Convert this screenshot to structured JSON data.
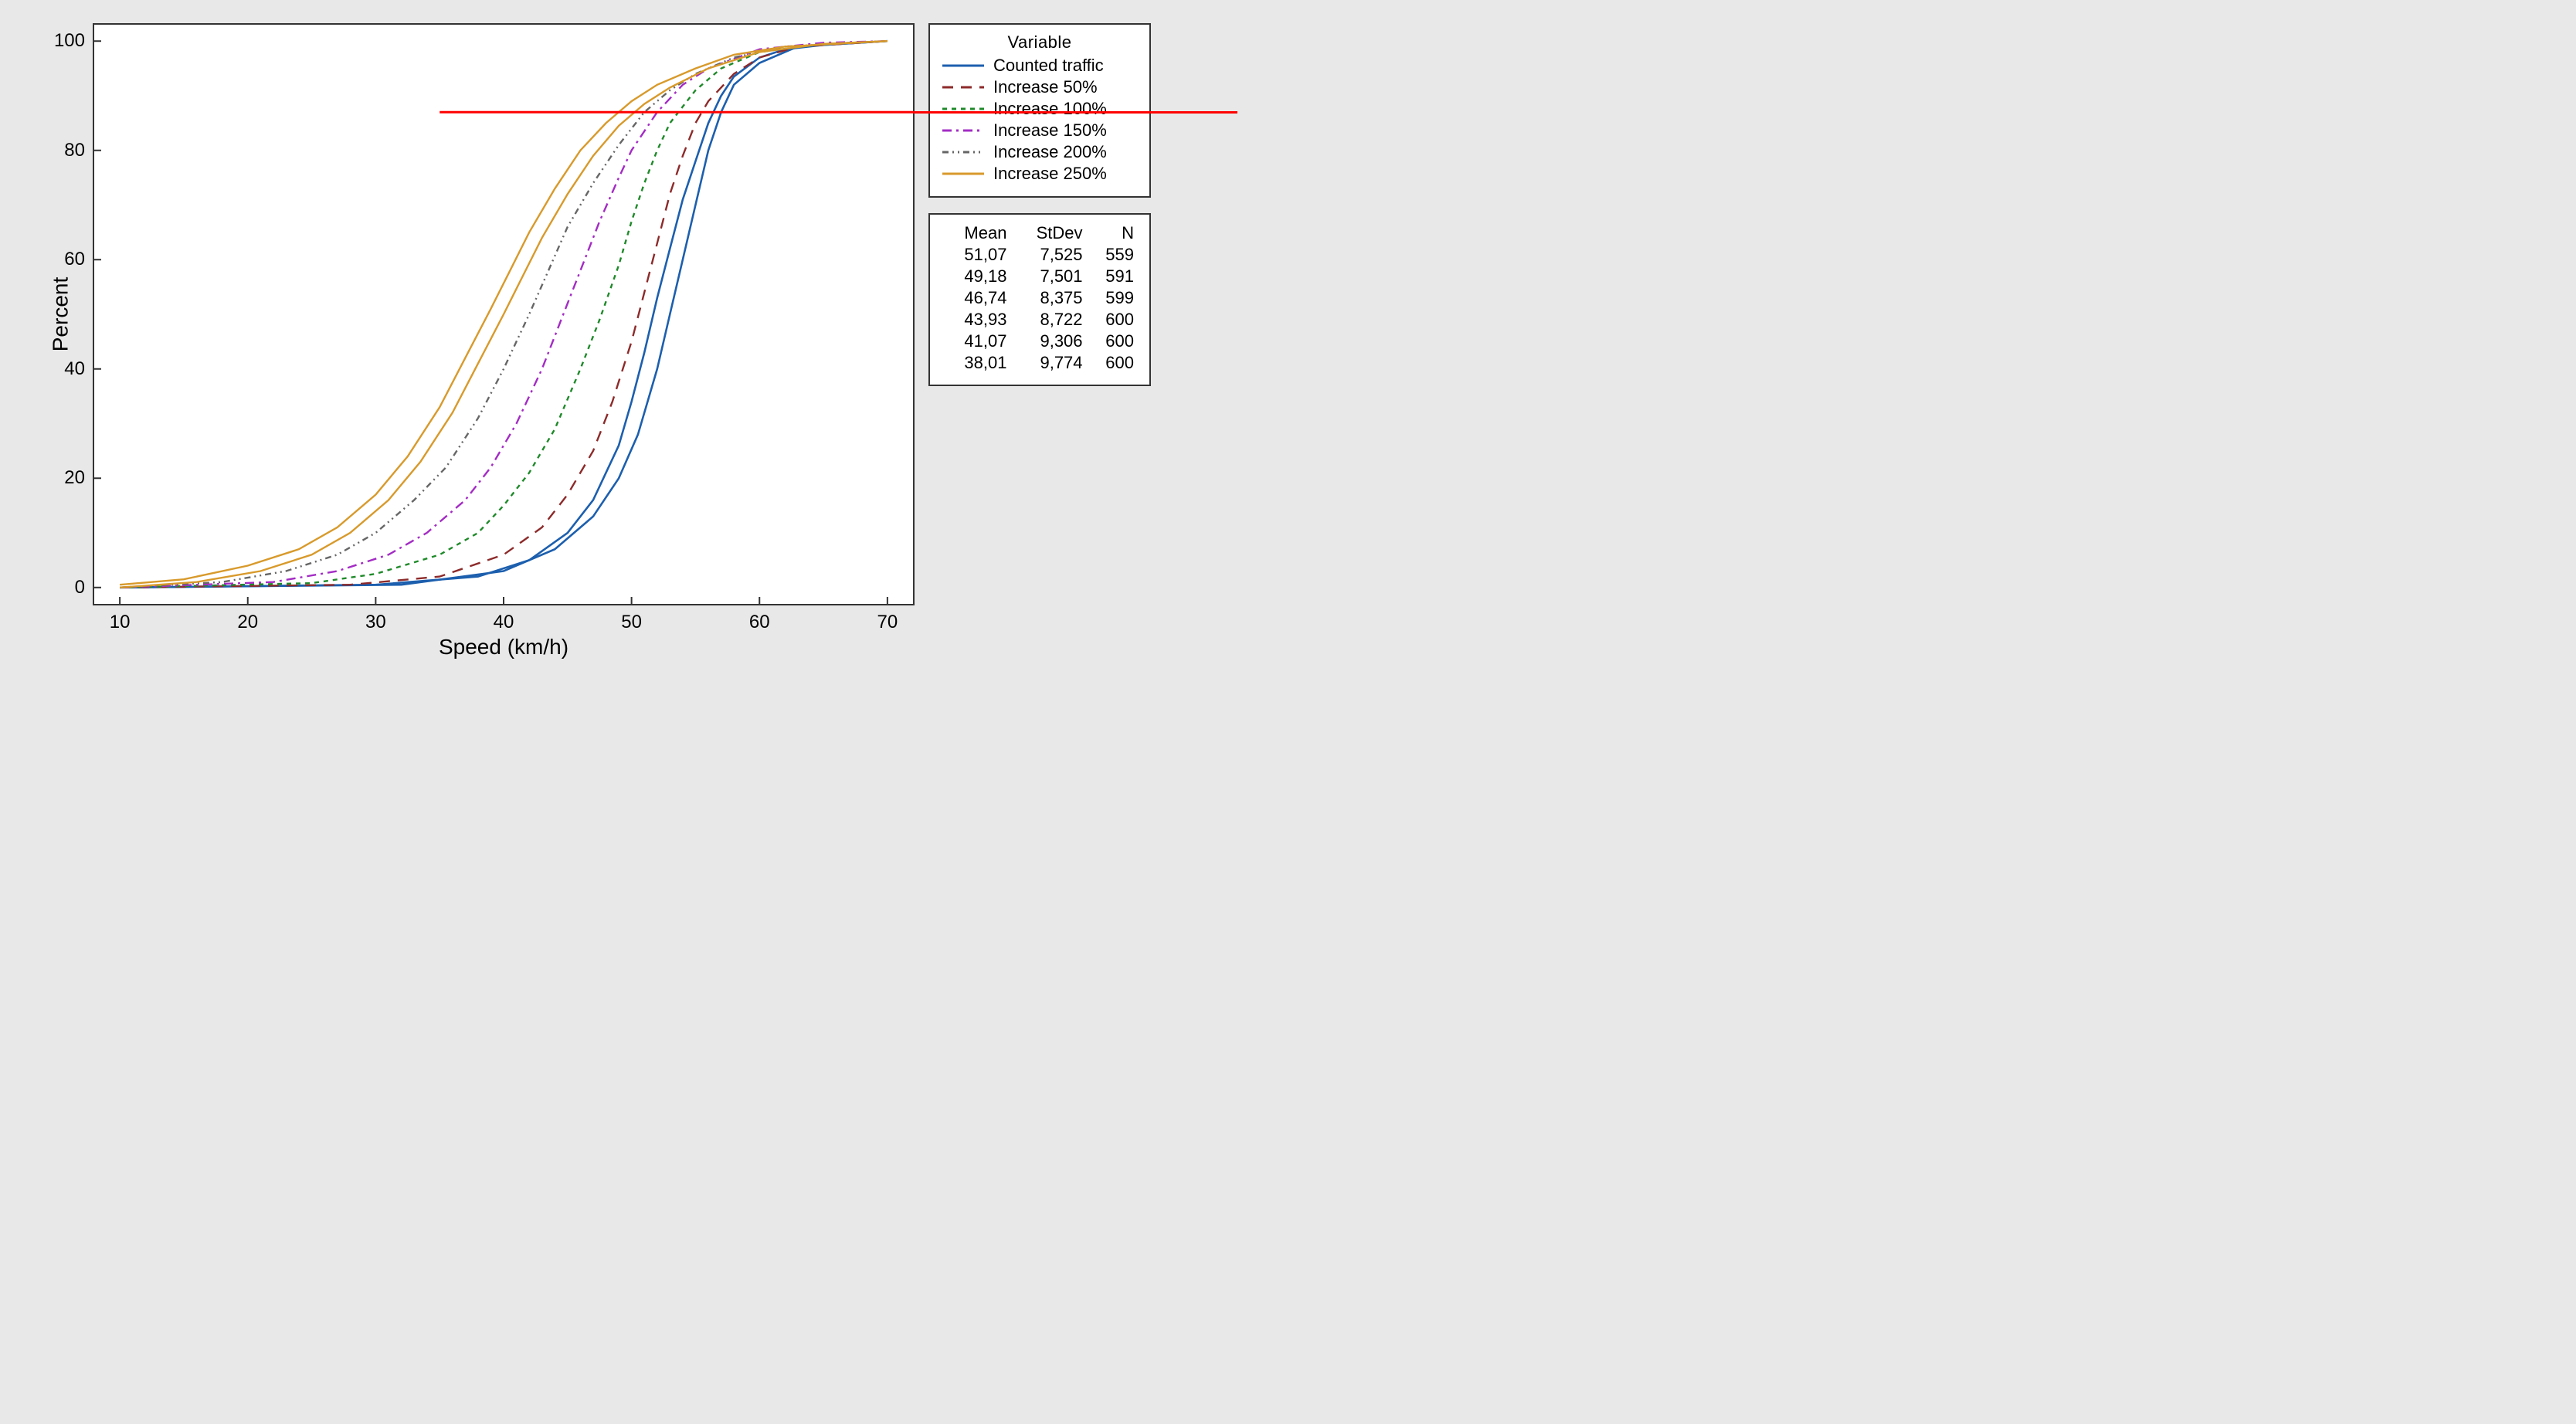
{
  "chart": {
    "type": "line-cdf",
    "background_color": "#e8e8e8",
    "plot_bg": "#ffffff",
    "border_color": "#333333",
    "x_label": "Speed (km/h)",
    "y_label": "Percent",
    "label_fontsize": 28,
    "tick_fontsize": 24,
    "xlim": [
      8,
      72
    ],
    "ylim": [
      -3,
      103
    ],
    "x_ticks": [
      10,
      20,
      30,
      40,
      50,
      60,
      70
    ],
    "y_ticks": [
      0,
      20,
      40,
      60,
      80,
      100
    ],
    "reference_line": {
      "y": 87,
      "color": "#ff0000",
      "width": 3,
      "x_start": 35,
      "extend_right": true
    },
    "series": [
      {
        "name": "Counted traffic",
        "color": "#1c5fae",
        "width": 2.6,
        "dash": "",
        "legend_sample": "solid",
        "mean": 51.07,
        "stdev": 7.525,
        "n": 559,
        "curves": [
          [
            [
              10,
              0
            ],
            [
              30,
              0.5
            ],
            [
              38,
              2
            ],
            [
              42,
              5
            ],
            [
              45,
              10
            ],
            [
              47,
              16
            ],
            [
              49,
              26
            ],
            [
              50,
              34
            ],
            [
              51,
              43
            ],
            [
              52,
              53
            ],
            [
              53,
              62
            ],
            [
              54,
              71
            ],
            [
              55,
              78
            ],
            [
              56,
              85
            ],
            [
              57,
              90
            ],
            [
              58,
              93.5
            ],
            [
              60,
              97
            ],
            [
              62,
              98.5
            ],
            [
              65,
              99.3
            ],
            [
              70,
              100
            ]
          ],
          [
            [
              10,
              0
            ],
            [
              32,
              0.5
            ],
            [
              40,
              3
            ],
            [
              44,
              7
            ],
            [
              47,
              13
            ],
            [
              49,
              20
            ],
            [
              50.5,
              28
            ],
            [
              52,
              40
            ],
            [
              53,
              50
            ],
            [
              54,
              60
            ],
            [
              55,
              70
            ],
            [
              56,
              80
            ],
            [
              57,
              87
            ],
            [
              58,
              92
            ],
            [
              60,
              96
            ],
            [
              63,
              99
            ],
            [
              70,
              100
            ]
          ]
        ]
      },
      {
        "name": "Increase 50%",
        "color": "#8d2a2a",
        "width": 2.4,
        "dash": "14,10",
        "legend_sample": "longdash",
        "mean": 49.18,
        "stdev": 7.501,
        "n": 591,
        "curves": [
          [
            [
              10,
              0
            ],
            [
              28,
              0.5
            ],
            [
              35,
              2
            ],
            [
              40,
              6
            ],
            [
              43,
              11
            ],
            [
              45,
              17
            ],
            [
              47,
              25
            ],
            [
              48.5,
              34
            ],
            [
              50,
              45
            ],
            [
              51,
              54
            ],
            [
              52,
              63
            ],
            [
              53,
              72
            ],
            [
              54,
              79
            ],
            [
              55,
              85
            ],
            [
              56,
              89
            ],
            [
              58,
              94
            ],
            [
              60,
              97
            ],
            [
              63,
              99
            ],
            [
              70,
              100
            ]
          ]
        ]
      },
      {
        "name": "Increase 100%",
        "color": "#1f8a2a",
        "width": 2.4,
        "dash": "6,6",
        "legend_sample": "shortdash",
        "mean": 46.74,
        "stdev": 8.375,
        "n": 599,
        "curves": [
          [
            [
              10,
              0
            ],
            [
              25,
              0.8
            ],
            [
              30,
              2.5
            ],
            [
              35,
              6
            ],
            [
              38,
              10
            ],
            [
              40,
              15
            ],
            [
              42,
              21
            ],
            [
              44,
              29
            ],
            [
              46,
              40
            ],
            [
              47.5,
              49
            ],
            [
              49,
              59
            ],
            [
              50,
              67
            ],
            [
              51,
              74
            ],
            [
              52,
              80
            ],
            [
              53,
              85
            ],
            [
              55,
              91
            ],
            [
              57,
              95
            ],
            [
              60,
              98
            ],
            [
              65,
              99.5
            ],
            [
              70,
              100
            ]
          ]
        ]
      },
      {
        "name": "Increase 150%",
        "color": "#a32cc4",
        "width": 2.4,
        "dash": "12,6,3,6",
        "legend_sample": "dashdot",
        "mean": 43.93,
        "stdev": 8.722,
        "n": 600,
        "curves": [
          [
            [
              10,
              0
            ],
            [
              22,
              1
            ],
            [
              27,
              3
            ],
            [
              31,
              6
            ],
            [
              34,
              10
            ],
            [
              37,
              16
            ],
            [
              39,
              22
            ],
            [
              41,
              30
            ],
            [
              43,
              40
            ],
            [
              44.5,
              49
            ],
            [
              46,
              58
            ],
            [
              47.5,
              67
            ],
            [
              49,
              75
            ],
            [
              50,
              80
            ],
            [
              52,
              87
            ],
            [
              54,
              92
            ],
            [
              56,
              95
            ],
            [
              60,
              98.5
            ],
            [
              65,
              99.7
            ],
            [
              70,
              100
            ]
          ]
        ]
      },
      {
        "name": "Increase 200%",
        "color": "#666666",
        "width": 2.4,
        "dash": "8,5,2,5,2,5",
        "legend_sample": "dashdotdot",
        "mean": 41.07,
        "stdev": 9.306,
        "n": 600,
        "curves": [
          [
            [
              10,
              0
            ],
            [
              18,
              1
            ],
            [
              23,
              3
            ],
            [
              27,
              6
            ],
            [
              30,
              10
            ],
            [
              33,
              16
            ],
            [
              35.5,
              22
            ],
            [
              38,
              31
            ],
            [
              40,
              40
            ],
            [
              42,
              50
            ],
            [
              43.5,
              58
            ],
            [
              45,
              66
            ],
            [
              47,
              74
            ],
            [
              49,
              81
            ],
            [
              51,
              87
            ],
            [
              53,
              91
            ],
            [
              55,
              94
            ],
            [
              58,
              97
            ],
            [
              62,
              99
            ],
            [
              70,
              100
            ]
          ]
        ]
      },
      {
        "name": "Increase 250%",
        "color": "#d89a2b",
        "width": 2.4,
        "dash": "",
        "legend_sample": "solid",
        "mean": 38.01,
        "stdev": 9.774,
        "n": 600,
        "curves": [
          [
            [
              10,
              0.5
            ],
            [
              15,
              1.5
            ],
            [
              20,
              4
            ],
            [
              24,
              7
            ],
            [
              27,
              11
            ],
            [
              30,
              17
            ],
            [
              32.5,
              24
            ],
            [
              35,
              33
            ],
            [
              37,
              42
            ],
            [
              39,
              51
            ],
            [
              40.5,
              58
            ],
            [
              42,
              65
            ],
            [
              44,
              73
            ],
            [
              46,
              80
            ],
            [
              48,
              85
            ],
            [
              50,
              89
            ],
            [
              52,
              92
            ],
            [
              55,
              95
            ],
            [
              58,
              97.5
            ],
            [
              62,
              99
            ],
            [
              70,
              100
            ]
          ],
          [
            [
              10,
              0
            ],
            [
              16,
              1
            ],
            [
              21,
              3
            ],
            [
              25,
              6
            ],
            [
              28,
              10
            ],
            [
              31,
              16
            ],
            [
              33.5,
              23
            ],
            [
              36,
              32
            ],
            [
              38,
              41
            ],
            [
              40,
              50
            ],
            [
              41.5,
              57
            ],
            [
              43,
              64
            ],
            [
              45,
              72
            ],
            [
              47,
              79
            ],
            [
              49,
              84.5
            ],
            [
              51,
              88.5
            ],
            [
              53,
              91.5
            ],
            [
              56,
              95
            ],
            [
              60,
              98
            ],
            [
              65,
              99.5
            ],
            [
              70,
              100
            ]
          ]
        ]
      }
    ],
    "legend": {
      "title": "Variable",
      "fontsize": 22
    },
    "stats": {
      "headers": [
        "Mean",
        "StDev",
        "N"
      ],
      "rows": [
        [
          "51,07",
          "7,525",
          "559"
        ],
        [
          "49,18",
          "7,501",
          "591"
        ],
        [
          "46,74",
          "8,375",
          "599"
        ],
        [
          "43,93",
          "8,722",
          "600"
        ],
        [
          "41,07",
          "9,306",
          "600"
        ],
        [
          "38,01",
          "9,774",
          "600"
        ]
      ]
    }
  }
}
